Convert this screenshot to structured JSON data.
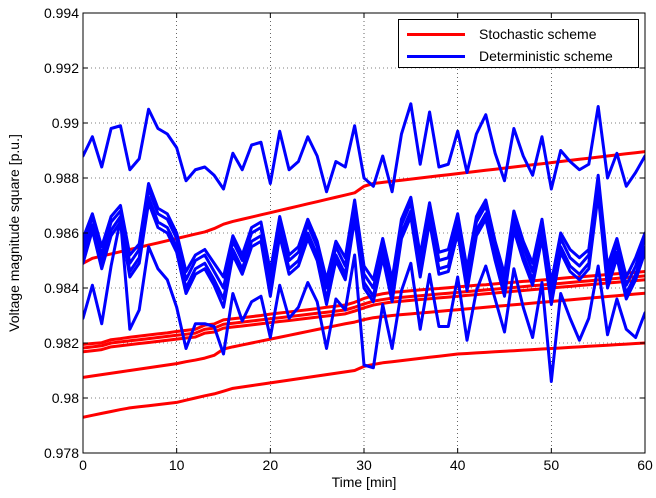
{
  "chart_data": {
    "type": "line",
    "title": "",
    "xlabel": "Time [min]",
    "ylabel": "Voltage magnitude square [p.u.]",
    "xlim": [
      0,
      60
    ],
    "ylim": [
      0.978,
      0.994
    ],
    "x_ticks": [
      "0",
      "10",
      "20",
      "30",
      "40",
      "50",
      "60"
    ],
    "y_ticks": [
      "0.978",
      "0.98",
      "0.982",
      "0.984",
      "0.986",
      "0.988",
      "0.99",
      "0.992",
      "0.994"
    ],
    "grid": true,
    "legend_position": "top-right",
    "legend": [
      {
        "label": "Stochastic scheme",
        "color": "#ff0000"
      },
      {
        "label": "Deterministic scheme",
        "color": "#0000ff"
      }
    ],
    "x": [
      0,
      1,
      2,
      3,
      4,
      5,
      6,
      7,
      8,
      9,
      10,
      11,
      12,
      13,
      14,
      15,
      16,
      17,
      18,
      19,
      20,
      21,
      22,
      23,
      24,
      25,
      26,
      27,
      28,
      29,
      30,
      31,
      32,
      33,
      34,
      35,
      36,
      37,
      38,
      39,
      40,
      41,
      42,
      43,
      44,
      45,
      46,
      47,
      48,
      49,
      50,
      51,
      52,
      53,
      54,
      55,
      56,
      57,
      58,
      59,
      60
    ],
    "series": [
      {
        "group": "Stochastic scheme",
        "color": "#ff0000",
        "values": [
          0.9849,
          0.98508,
          0.98516,
          0.98524,
          0.98532,
          0.9854,
          0.98548,
          0.98556,
          0.98564,
          0.98572,
          0.9858,
          0.98588,
          0.98596,
          0.98604,
          0.98616,
          0.98632,
          0.98642,
          0.9865,
          0.98658,
          0.98666,
          0.98674,
          0.98682,
          0.9869,
          0.98698,
          0.98706,
          0.98714,
          0.98722,
          0.9873,
          0.98738,
          0.98746,
          0.9877,
          0.9878,
          0.98784,
          0.98788,
          0.98792,
          0.98796,
          0.988,
          0.98804,
          0.98808,
          0.98812,
          0.98816,
          0.9882,
          0.98824,
          0.98828,
          0.98832,
          0.98836,
          0.9884,
          0.98844,
          0.98848,
          0.98852,
          0.98856,
          0.9886,
          0.98864,
          0.98868,
          0.98872,
          0.98876,
          0.9888,
          0.98884,
          0.98888,
          0.98892,
          0.98896
        ]
      },
      {
        "group": "Stochastic scheme",
        "color": "#ff0000",
        "values": [
          0.98195,
          0.98198,
          0.98201,
          0.98212,
          0.98216,
          0.98221,
          0.98225,
          0.98229,
          0.98233,
          0.98237,
          0.98242,
          0.98246,
          0.9825,
          0.98265,
          0.98269,
          0.98284,
          0.98288,
          0.98292,
          0.98296,
          0.983,
          0.98305,
          0.98309,
          0.98313,
          0.98317,
          0.98321,
          0.98325,
          0.9833,
          0.98334,
          0.98338,
          0.98348,
          0.98362,
          0.98372,
          0.98379,
          0.98384,
          0.98387,
          0.9839,
          0.98393,
          0.98396,
          0.98398,
          0.98401,
          0.98404,
          0.98407,
          0.9841,
          0.98412,
          0.98415,
          0.98418,
          0.98421,
          0.98424,
          0.98426,
          0.98429,
          0.98432,
          0.98435,
          0.98438,
          0.9844,
          0.98443,
          0.98446,
          0.98449,
          0.98452,
          0.98454,
          0.98457,
          0.9846
        ]
      },
      {
        "group": "Stochastic scheme",
        "color": "#ff0000",
        "values": [
          0.98182,
          0.98186,
          0.9819,
          0.982,
          0.98204,
          0.98208,
          0.98212,
          0.98216,
          0.9822,
          0.98224,
          0.98228,
          0.98232,
          0.98236,
          0.9825,
          0.98254,
          0.98268,
          0.98272,
          0.98276,
          0.9828,
          0.98284,
          0.98288,
          0.98292,
          0.98296,
          0.983,
          0.98304,
          0.98308,
          0.98312,
          0.98316,
          0.9832,
          0.9833,
          0.98342,
          0.98352,
          0.98358,
          0.98363,
          0.98366,
          0.98369,
          0.98372,
          0.98375,
          0.98378,
          0.98381,
          0.98384,
          0.98387,
          0.9839,
          0.98393,
          0.98396,
          0.98399,
          0.98402,
          0.98405,
          0.98408,
          0.98411,
          0.98414,
          0.98417,
          0.9842,
          0.98423,
          0.98426,
          0.98429,
          0.98432,
          0.98435,
          0.98438,
          0.98441,
          0.98444
        ]
      },
      {
        "group": "Stochastic scheme",
        "color": "#ff0000",
        "values": [
          0.98168,
          0.98172,
          0.98176,
          0.98186,
          0.9819,
          0.98194,
          0.98198,
          0.98202,
          0.98206,
          0.9821,
          0.98214,
          0.98218,
          0.98222,
          0.98236,
          0.9824,
          0.98254,
          0.98258,
          0.98262,
          0.98266,
          0.9827,
          0.98274,
          0.98278,
          0.98282,
          0.98286,
          0.9829,
          0.98294,
          0.98298,
          0.98302,
          0.98306,
          0.98316,
          0.98328,
          0.98338,
          0.98344,
          0.98349,
          0.98352,
          0.98355,
          0.98358,
          0.98361,
          0.98364,
          0.98367,
          0.9837,
          0.98373,
          0.98376,
          0.98379,
          0.98382,
          0.98385,
          0.98388,
          0.98391,
          0.98394,
          0.98397,
          0.984,
          0.98403,
          0.98406,
          0.98409,
          0.98412,
          0.98415,
          0.98418,
          0.98421,
          0.98424,
          0.98427,
          0.9843
        ]
      },
      {
        "group": "Stochastic scheme",
        "color": "#ff0000",
        "values": [
          0.98075,
          0.9808,
          0.98085,
          0.9809,
          0.98095,
          0.981,
          0.98105,
          0.9811,
          0.98115,
          0.9812,
          0.98125,
          0.98132,
          0.98138,
          0.98145,
          0.98155,
          0.98178,
          0.98186,
          0.98193,
          0.982,
          0.98207,
          0.98214,
          0.98221,
          0.98228,
          0.98235,
          0.98242,
          0.98249,
          0.98256,
          0.98263,
          0.9827,
          0.98276,
          0.98285,
          0.98292,
          0.98296,
          0.983,
          0.98303,
          0.98306,
          0.98309,
          0.98312,
          0.98315,
          0.98318,
          0.98321,
          0.98324,
          0.98327,
          0.9833,
          0.98333,
          0.98336,
          0.98339,
          0.98342,
          0.98345,
          0.98348,
          0.98351,
          0.98354,
          0.98357,
          0.9836,
          0.98363,
          0.98366,
          0.98369,
          0.98372,
          0.98375,
          0.98378,
          0.98381
        ]
      },
      {
        "group": "Stochastic scheme",
        "color": "#ff0000",
        "values": [
          0.9793,
          0.97937,
          0.97944,
          0.97951,
          0.97958,
          0.97964,
          0.97968,
          0.97972,
          0.97976,
          0.9798,
          0.97984,
          0.97992,
          0.98,
          0.98008,
          0.98015,
          0.98025,
          0.98035,
          0.9804,
          0.98045,
          0.9805,
          0.98055,
          0.9806,
          0.98065,
          0.9807,
          0.98075,
          0.9808,
          0.98085,
          0.9809,
          0.98095,
          0.981,
          0.98115,
          0.98122,
          0.98128,
          0.98132,
          0.98136,
          0.9814,
          0.98144,
          0.98148,
          0.98152,
          0.98156,
          0.9816,
          0.98162,
          0.98164,
          0.98166,
          0.98168,
          0.9817,
          0.98172,
          0.98174,
          0.98176,
          0.98178,
          0.9818,
          0.98182,
          0.98184,
          0.98186,
          0.98188,
          0.9819,
          0.98192,
          0.98194,
          0.98196,
          0.98198,
          0.982
        ]
      },
      {
        "group": "Deterministic scheme",
        "color": "#0000ff",
        "values": [
          0.9888,
          0.9895,
          0.9884,
          0.9898,
          0.9899,
          0.9883,
          0.9887,
          0.9905,
          0.9898,
          0.9896,
          0.9891,
          0.9879,
          0.9883,
          0.9884,
          0.9881,
          0.9876,
          0.9889,
          0.9883,
          0.9892,
          0.9893,
          0.9878,
          0.9897,
          0.9883,
          0.9886,
          0.9895,
          0.9888,
          0.9875,
          0.9886,
          0.9884,
          0.9899,
          0.988,
          0.9877,
          0.9888,
          0.9875,
          0.9896,
          0.9907,
          0.9885,
          0.9904,
          0.9884,
          0.9885,
          0.9897,
          0.9882,
          0.9896,
          0.9903,
          0.9889,
          0.9879,
          0.9898,
          0.9888,
          0.9881,
          0.9895,
          0.9876,
          0.989,
          0.9886,
          0.9883,
          0.9885,
          0.9906,
          0.988,
          0.9889,
          0.9877,
          0.9882,
          0.9888
        ]
      },
      {
        "group": "Deterministic scheme",
        "color": "#0000ff",
        "values": [
          0.9858,
          0.9867,
          0.9855,
          0.9866,
          0.987,
          0.9852,
          0.9856,
          0.9878,
          0.9869,
          0.9867,
          0.986,
          0.9846,
          0.9852,
          0.9854,
          0.9849,
          0.9844,
          0.9859,
          0.9852,
          0.9862,
          0.9864,
          0.9846,
          0.9866,
          0.9852,
          0.9855,
          0.9865,
          0.9857,
          0.9843,
          0.9857,
          0.9851,
          0.9872,
          0.9848,
          0.9843,
          0.9858,
          0.9843,
          0.9865,
          0.9873,
          0.9852,
          0.9871,
          0.9853,
          0.9854,
          0.9867,
          0.9847,
          0.9866,
          0.9872,
          0.9857,
          0.9845,
          0.9868,
          0.9857,
          0.9849,
          0.9865,
          0.9842,
          0.986,
          0.9854,
          0.9851,
          0.9854,
          0.9881,
          0.9848,
          0.9858,
          0.9844,
          0.9851,
          0.986
        ]
      },
      {
        "group": "Deterministic scheme",
        "color": "#0000ff",
        "values": [
          0.9855,
          0.9866,
          0.9852,
          0.9864,
          0.9868,
          0.9849,
          0.9854,
          0.9876,
          0.9867,
          0.9865,
          0.9858,
          0.9843,
          0.985,
          0.9852,
          0.9846,
          0.984,
          0.9857,
          0.985,
          0.986,
          0.9862,
          0.9842,
          0.9864,
          0.985,
          0.9853,
          0.9863,
          0.9855,
          0.984,
          0.9855,
          0.9848,
          0.987,
          0.9845,
          0.984,
          0.9856,
          0.984,
          0.9863,
          0.9871,
          0.9849,
          0.9869,
          0.985,
          0.9851,
          0.9865,
          0.9844,
          0.9864,
          0.987,
          0.9855,
          0.9842,
          0.9866,
          0.9855,
          0.9846,
          0.9863,
          0.9839,
          0.9858,
          0.9851,
          0.9848,
          0.9852,
          0.9879,
          0.9845,
          0.9856,
          0.9841,
          0.9848,
          0.9858
        ]
      },
      {
        "group": "Deterministic scheme",
        "color": "#0000ff",
        "values": [
          0.9852,
          0.9863,
          0.9849,
          0.9861,
          0.9866,
          0.9846,
          0.9851,
          0.9873,
          0.9864,
          0.9862,
          0.9855,
          0.984,
          0.9847,
          0.9849,
          0.9843,
          0.9836,
          0.9854,
          0.9847,
          0.9857,
          0.9859,
          0.9839,
          0.9861,
          0.9847,
          0.985,
          0.986,
          0.9852,
          0.9836,
          0.9852,
          0.9845,
          0.9867,
          0.9842,
          0.9837,
          0.9853,
          0.9837,
          0.986,
          0.9868,
          0.9846,
          0.9866,
          0.9847,
          0.9848,
          0.9862,
          0.9841,
          0.9861,
          0.9867,
          0.9852,
          0.9839,
          0.9863,
          0.9852,
          0.9843,
          0.986,
          0.9836,
          0.9855,
          0.9848,
          0.9845,
          0.9849,
          0.9876,
          0.9842,
          0.9853,
          0.9838,
          0.9845,
          0.9855
        ]
      },
      {
        "group": "Deterministic scheme",
        "color": "#0000ff",
        "values": [
          0.9849,
          0.9861,
          0.9847,
          0.9859,
          0.9864,
          0.9844,
          0.9849,
          0.9871,
          0.9862,
          0.986,
          0.9853,
          0.9838,
          0.9845,
          0.9847,
          0.9841,
          0.9833,
          0.9852,
          0.9845,
          0.9855,
          0.9857,
          0.9837,
          0.9859,
          0.9845,
          0.9848,
          0.9858,
          0.985,
          0.9834,
          0.985,
          0.9843,
          0.9865,
          0.984,
          0.9835,
          0.9851,
          0.9835,
          0.9858,
          0.9866,
          0.9844,
          0.9864,
          0.9845,
          0.9846,
          0.986,
          0.9839,
          0.9859,
          0.9865,
          0.985,
          0.9837,
          0.9861,
          0.985,
          0.9841,
          0.9858,
          0.9834,
          0.9853,
          0.9846,
          0.9843,
          0.9847,
          0.9874,
          0.984,
          0.9851,
          0.9836,
          0.9843,
          0.9853
        ]
      },
      {
        "group": "Deterministic scheme",
        "color": "#0000ff",
        "values": [
          0.9829,
          0.9841,
          0.9827,
          0.9848,
          0.9865,
          0.9825,
          0.9832,
          0.9855,
          0.9847,
          0.9843,
          0.9833,
          0.9818,
          0.9827,
          0.9827,
          0.9826,
          0.9816,
          0.9838,
          0.9828,
          0.9835,
          0.9837,
          0.9822,
          0.9841,
          0.9829,
          0.9833,
          0.9842,
          0.9835,
          0.9818,
          0.9836,
          0.9832,
          0.9852,
          0.9812,
          0.9811,
          0.9834,
          0.9818,
          0.9839,
          0.9849,
          0.9825,
          0.9845,
          0.9826,
          0.9826,
          0.9844,
          0.9821,
          0.9839,
          0.9848,
          0.9836,
          0.9824,
          0.9847,
          0.9833,
          0.9822,
          0.9842,
          0.9806,
          0.9838,
          0.9829,
          0.9821,
          0.9829,
          0.9848,
          0.9823,
          0.9836,
          0.9825,
          0.9822,
          0.9831
        ]
      }
    ]
  }
}
